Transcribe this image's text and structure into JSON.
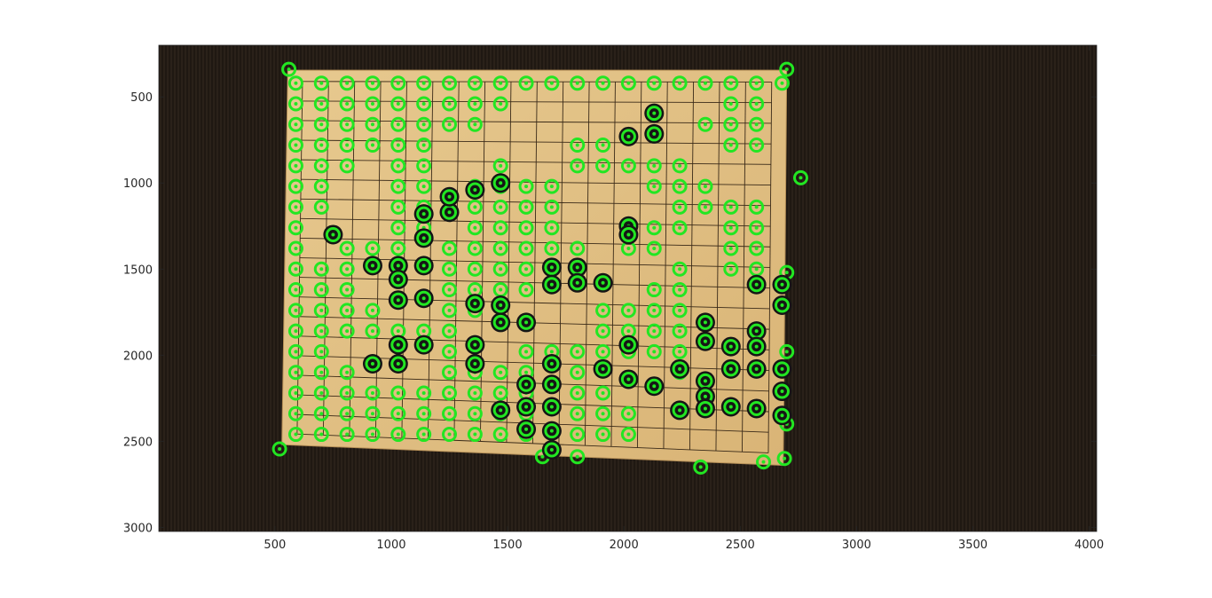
{
  "chart_data": {
    "type": "scatter",
    "title": "",
    "xlabel": "",
    "ylabel": "",
    "xlim": [
      1,
      4032
    ],
    "ylim": [
      3024,
      200
    ],
    "y_reversed": true,
    "x_ticks": [
      500,
      1000,
      1500,
      2000,
      2500,
      3000,
      3500,
      4000
    ],
    "y_ticks": [
      500,
      1000,
      1500,
      2000,
      2500,
      3000
    ],
    "x_tick_labels": [
      "500",
      "1000",
      "1500",
      "2000",
      "2500",
      "3000",
      "3500",
      "4000"
    ],
    "y_tick_labels": [
      "500",
      "1000",
      "1500",
      "2000",
      "2500",
      "3000"
    ],
    "grid": false,
    "background_image": "photo of a go board with black and white stones on a dark carpet",
    "board_corners": [
      [
        555,
        345
      ],
      [
        2700,
        345
      ],
      [
        2685,
        2640
      ],
      [
        530,
        2520
      ]
    ],
    "board_grid_lines": 19,
    "marker_color": "#22e622",
    "series": [
      {
        "marker": "circle-green",
        "points": [
          [
            590,
            420
          ],
          [
            700,
            420
          ],
          [
            810,
            420
          ],
          [
            920,
            420
          ],
          [
            1030,
            420
          ],
          [
            1140,
            420
          ],
          [
            1250,
            420
          ],
          [
            1360,
            420
          ],
          [
            1470,
            420
          ],
          [
            1580,
            420
          ],
          [
            1690,
            420
          ],
          [
            1800,
            420
          ],
          [
            1910,
            420
          ],
          [
            2020,
            420
          ],
          [
            2130,
            420
          ],
          [
            2240,
            420
          ],
          [
            2350,
            420
          ],
          [
            2460,
            420
          ],
          [
            2570,
            420
          ],
          [
            2680,
            420
          ],
          [
            590,
            540
          ],
          [
            700,
            540
          ],
          [
            810,
            540
          ],
          [
            920,
            540
          ],
          [
            1030,
            540
          ],
          [
            1140,
            540
          ],
          [
            1250,
            540
          ],
          [
            1360,
            540
          ],
          [
            1470,
            540
          ],
          [
            2460,
            540
          ],
          [
            2570,
            540
          ],
          [
            590,
            660
          ],
          [
            700,
            660
          ],
          [
            810,
            660
          ],
          [
            920,
            660
          ],
          [
            1030,
            660
          ],
          [
            1140,
            660
          ],
          [
            1250,
            660
          ],
          [
            1360,
            660
          ],
          [
            2350,
            660
          ],
          [
            2460,
            660
          ],
          [
            2570,
            660
          ],
          [
            590,
            780
          ],
          [
            700,
            780
          ],
          [
            810,
            780
          ],
          [
            920,
            780
          ],
          [
            1030,
            780
          ],
          [
            1140,
            780
          ],
          [
            1800,
            780
          ],
          [
            1910,
            780
          ],
          [
            2460,
            780
          ],
          [
            2570,
            780
          ],
          [
            590,
            900
          ],
          [
            700,
            900
          ],
          [
            810,
            900
          ],
          [
            1030,
            900
          ],
          [
            1140,
            900
          ],
          [
            1470,
            900
          ],
          [
            1800,
            900
          ],
          [
            1910,
            900
          ],
          [
            2020,
            900
          ],
          [
            2130,
            900
          ],
          [
            2240,
            900
          ],
          [
            590,
            1020
          ],
          [
            700,
            1020
          ],
          [
            1030,
            1020
          ],
          [
            1140,
            1020
          ],
          [
            1360,
            1020
          ],
          [
            1470,
            1020
          ],
          [
            1580,
            1020
          ],
          [
            1690,
            1020
          ],
          [
            2130,
            1020
          ],
          [
            2240,
            1020
          ],
          [
            2350,
            1020
          ],
          [
            590,
            1140
          ],
          [
            700,
            1140
          ],
          [
            1030,
            1140
          ],
          [
            1140,
            1140
          ],
          [
            1360,
            1140
          ],
          [
            1470,
            1140
          ],
          [
            1580,
            1140
          ],
          [
            1690,
            1140
          ],
          [
            2240,
            1140
          ],
          [
            2350,
            1140
          ],
          [
            2460,
            1140
          ],
          [
            2570,
            1140
          ],
          [
            590,
            1260
          ],
          [
            1030,
            1260
          ],
          [
            1140,
            1260
          ],
          [
            1360,
            1260
          ],
          [
            1470,
            1260
          ],
          [
            1580,
            1260
          ],
          [
            1690,
            1260
          ],
          [
            2130,
            1260
          ],
          [
            2240,
            1260
          ],
          [
            2460,
            1260
          ],
          [
            2570,
            1260
          ],
          [
            590,
            1380
          ],
          [
            810,
            1380
          ],
          [
            920,
            1380
          ],
          [
            1030,
            1380
          ],
          [
            1250,
            1380
          ],
          [
            1360,
            1380
          ],
          [
            1470,
            1380
          ],
          [
            1580,
            1380
          ],
          [
            1690,
            1380
          ],
          [
            1800,
            1380
          ],
          [
            2020,
            1380
          ],
          [
            2130,
            1380
          ],
          [
            2460,
            1380
          ],
          [
            2570,
            1380
          ],
          [
            590,
            1500
          ],
          [
            700,
            1500
          ],
          [
            810,
            1500
          ],
          [
            1250,
            1500
          ],
          [
            1360,
            1500
          ],
          [
            1470,
            1500
          ],
          [
            1580,
            1500
          ],
          [
            2240,
            1500
          ],
          [
            2460,
            1500
          ],
          [
            2570,
            1500
          ],
          [
            590,
            1620
          ],
          [
            700,
            1620
          ],
          [
            810,
            1620
          ],
          [
            1250,
            1620
          ],
          [
            1360,
            1620
          ],
          [
            1470,
            1620
          ],
          [
            1580,
            1620
          ],
          [
            2130,
            1620
          ],
          [
            2240,
            1620
          ],
          [
            590,
            1740
          ],
          [
            700,
            1740
          ],
          [
            810,
            1740
          ],
          [
            920,
            1740
          ],
          [
            1250,
            1740
          ],
          [
            1360,
            1740
          ],
          [
            1910,
            1740
          ],
          [
            2020,
            1740
          ],
          [
            2130,
            1740
          ],
          [
            2240,
            1740
          ],
          [
            590,
            1860
          ],
          [
            700,
            1860
          ],
          [
            810,
            1860
          ],
          [
            920,
            1860
          ],
          [
            1030,
            1860
          ],
          [
            1140,
            1860
          ],
          [
            1250,
            1860
          ],
          [
            1910,
            1860
          ],
          [
            2020,
            1860
          ],
          [
            2130,
            1860
          ],
          [
            2240,
            1860
          ],
          [
            590,
            1980
          ],
          [
            700,
            1980
          ],
          [
            1250,
            1980
          ],
          [
            1580,
            1980
          ],
          [
            1690,
            1980
          ],
          [
            1800,
            1980
          ],
          [
            1910,
            1980
          ],
          [
            2020,
            1980
          ],
          [
            2130,
            1980
          ],
          [
            2240,
            1980
          ],
          [
            590,
            2100
          ],
          [
            700,
            2100
          ],
          [
            810,
            2100
          ],
          [
            1250,
            2100
          ],
          [
            1360,
            2100
          ],
          [
            1470,
            2100
          ],
          [
            1580,
            2100
          ],
          [
            1800,
            2100
          ],
          [
            2240,
            2100
          ],
          [
            590,
            2220
          ],
          [
            700,
            2220
          ],
          [
            810,
            2220
          ],
          [
            920,
            2220
          ],
          [
            1030,
            2220
          ],
          [
            1140,
            2220
          ],
          [
            1250,
            2220
          ],
          [
            1360,
            2220
          ],
          [
            1470,
            2220
          ],
          [
            1580,
            2220
          ],
          [
            1800,
            2220
          ],
          [
            1910,
            2220
          ],
          [
            590,
            2340
          ],
          [
            700,
            2340
          ],
          [
            810,
            2340
          ],
          [
            920,
            2340
          ],
          [
            1030,
            2340
          ],
          [
            1140,
            2340
          ],
          [
            1250,
            2340
          ],
          [
            1360,
            2340
          ],
          [
            1470,
            2340
          ],
          [
            1580,
            2340
          ],
          [
            1800,
            2340
          ],
          [
            1910,
            2340
          ],
          [
            2020,
            2340
          ],
          [
            590,
            2460
          ],
          [
            700,
            2460
          ],
          [
            810,
            2460
          ],
          [
            920,
            2460
          ],
          [
            1030,
            2460
          ],
          [
            1140,
            2460
          ],
          [
            1250,
            2460
          ],
          [
            1360,
            2460
          ],
          [
            1470,
            2460
          ],
          [
            1580,
            2460
          ],
          [
            1800,
            2460
          ],
          [
            1910,
            2460
          ],
          [
            2020,
            2460
          ],
          [
            520,
            2545
          ],
          [
            560,
            340
          ],
          [
            2760,
            970
          ],
          [
            2330,
            2650
          ],
          [
            1650,
            2590
          ],
          [
            1800,
            2590
          ],
          [
            2600,
            2620
          ],
          [
            2690,
            2600
          ],
          [
            2700,
            340
          ],
          [
            2700,
            2400
          ],
          [
            2700,
            1520
          ],
          [
            2700,
            1980
          ]
        ]
      },
      {
        "marker": "circle-green-on-black",
        "points": [
          [
            2130,
            595
          ],
          [
            2020,
            730
          ],
          [
            2130,
            715
          ],
          [
            1140,
            1180
          ],
          [
            1250,
            1170
          ],
          [
            1360,
            1040
          ],
          [
            1250,
            1080
          ],
          [
            1470,
            1000
          ],
          [
            2020,
            1250
          ],
          [
            2020,
            1300
          ],
          [
            750,
            1300
          ],
          [
            1140,
            1320
          ],
          [
            920,
            1480
          ],
          [
            1030,
            1480
          ],
          [
            1030,
            1560
          ],
          [
            1140,
            1480
          ],
          [
            1140,
            1670
          ],
          [
            1030,
            1680
          ],
          [
            1690,
            1490
          ],
          [
            1800,
            1490
          ],
          [
            1690,
            1590
          ],
          [
            1800,
            1580
          ],
          [
            1910,
            1580
          ],
          [
            2570,
            1590
          ],
          [
            2680,
            1590
          ],
          [
            2680,
            1710
          ],
          [
            1360,
            1700
          ],
          [
            1470,
            1710
          ],
          [
            1470,
            1810
          ],
          [
            1580,
            1810
          ],
          [
            2350,
            1810
          ],
          [
            2350,
            1920
          ],
          [
            2460,
            1950
          ],
          [
            2570,
            1860
          ],
          [
            2570,
            1950
          ],
          [
            1030,
            1940
          ],
          [
            1140,
            1940
          ],
          [
            920,
            2050
          ],
          [
            1030,
            2050
          ],
          [
            1360,
            1940
          ],
          [
            1360,
            2050
          ],
          [
            1690,
            2050
          ],
          [
            1690,
            2170
          ],
          [
            1580,
            2170
          ],
          [
            1580,
            2300
          ],
          [
            1690,
            2300
          ],
          [
            1580,
            2430
          ],
          [
            1690,
            2440
          ],
          [
            1690,
            2550
          ],
          [
            1910,
            2080
          ],
          [
            2020,
            2140
          ],
          [
            2130,
            2180
          ],
          [
            2240,
            2080
          ],
          [
            2350,
            2150
          ],
          [
            2460,
            2080
          ],
          [
            2570,
            2080
          ],
          [
            2680,
            2080
          ],
          [
            2680,
            2210
          ],
          [
            2680,
            2350
          ],
          [
            2570,
            2310
          ],
          [
            2350,
            2240
          ],
          [
            2240,
            2320
          ],
          [
            2350,
            2310
          ],
          [
            2460,
            2300
          ],
          [
            1470,
            2320
          ],
          [
            2020,
            1940
          ]
        ]
      }
    ]
  }
}
